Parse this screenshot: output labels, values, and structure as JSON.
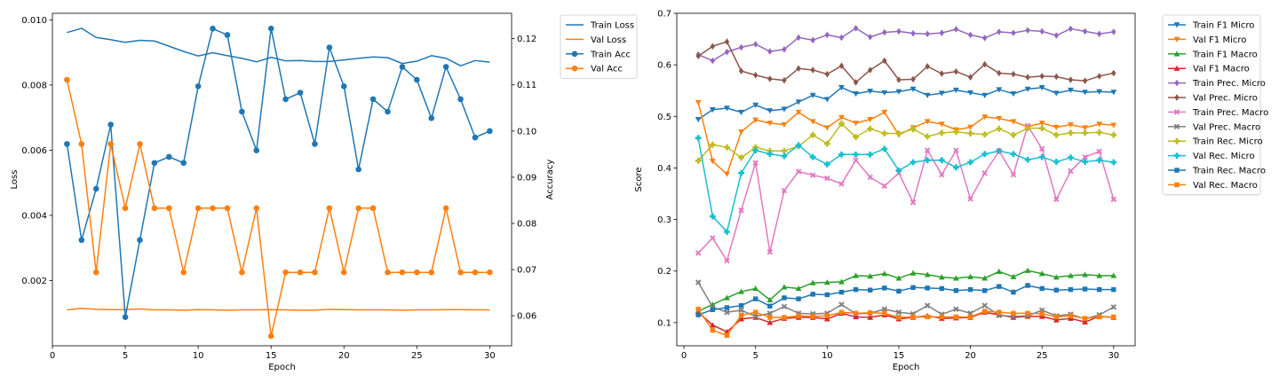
{
  "chart_data": [
    {
      "type": "line",
      "xlabel": "Epoch",
      "ylabel": "Loss",
      "y2label": "Accuracy",
      "xlim": [
        0,
        31.5
      ],
      "ylim": [
        0.0,
        0.0102
      ],
      "y2lim": [
        0.0535,
        0.1255
      ],
      "xticks": [
        "0",
        "5",
        "10",
        "15",
        "20",
        "25",
        "30"
      ],
      "xtick_values": [
        0,
        5,
        10,
        15,
        20,
        25,
        30
      ],
      "yticks": [
        "0.002",
        "0.004",
        "0.006",
        "0.008",
        "0.010"
      ],
      "ytick_values": [
        0.002,
        0.004,
        0.006,
        0.008,
        0.01
      ],
      "y2ticks": [
        "0.06",
        "0.07",
        "0.08",
        "0.09",
        "0.10",
        "0.11",
        "0.12"
      ],
      "y2tick_values": [
        0.06,
        0.07,
        0.08,
        0.09,
        0.1,
        0.11,
        0.12
      ],
      "grid": false,
      "legend_position": "outside-right-top",
      "x": [
        1,
        2,
        3,
        4,
        5,
        6,
        7,
        8,
        9,
        10,
        11,
        12,
        13,
        14,
        15,
        16,
        17,
        18,
        19,
        20,
        21,
        22,
        23,
        24,
        25,
        26,
        27,
        28,
        29,
        30
      ],
      "series": [
        {
          "name": "Train Loss",
          "axis": "left",
          "color": "#1f77b4",
          "marker": "none",
          "values": [
            0.00961,
            0.00974,
            0.00946,
            0.00939,
            0.00931,
            0.00937,
            0.00935,
            0.00919,
            0.00903,
            0.00889,
            0.00899,
            0.0089,
            0.00882,
            0.00871,
            0.00885,
            0.00874,
            0.00875,
            0.00872,
            0.00872,
            0.00877,
            0.00882,
            0.00886,
            0.00884,
            0.00866,
            0.00873,
            0.0089,
            0.00882,
            0.00859,
            0.00875,
            0.0087
          ]
        },
        {
          "name": "Val Loss",
          "axis": "left",
          "color": "#ff7f0e",
          "marker": "none",
          "values": [
            0.0011,
            0.00115,
            0.00112,
            0.00111,
            0.00111,
            0.00113,
            0.0011,
            0.0011,
            0.00109,
            0.00111,
            0.0011,
            0.00109,
            0.0011,
            0.0011,
            0.00111,
            0.0011,
            0.00109,
            0.00109,
            0.00112,
            0.00111,
            0.0011,
            0.0011,
            0.0011,
            0.00109,
            0.0011,
            0.0011,
            0.00111,
            0.00111,
            0.0011,
            0.0011
          ]
        },
        {
          "name": "Train Acc",
          "axis": "right",
          "color": "#1f77b4",
          "marker": "circle",
          "values": [
            0.0972,
            0.0764,
            0.0875,
            0.1014,
            0.0597,
            0.0764,
            0.0931,
            0.0944,
            0.0931,
            0.1097,
            0.1222,
            0.1208,
            0.1042,
            0.0958,
            0.1222,
            0.1069,
            0.1083,
            0.0972,
            0.1181,
            0.1097,
            0.0917,
            0.1069,
            0.1042,
            0.1139,
            0.1111,
            0.1028,
            0.1139,
            0.1069,
            0.0986,
            0.1
          ]
        },
        {
          "name": "Val Acc",
          "axis": "right",
          "color": "#ff7f0e",
          "marker": "circle",
          "values": [
            0.1111,
            0.0972,
            0.0694,
            0.0972,
            0.0833,
            0.0972,
            0.0833,
            0.0833,
            0.0694,
            0.0833,
            0.0833,
            0.0833,
            0.0694,
            0.0833,
            0.0556,
            0.0694,
            0.0694,
            0.0694,
            0.0833,
            0.0694,
            0.0833,
            0.0833,
            0.0694,
            0.0694,
            0.0694,
            0.0694,
            0.0833,
            0.0694,
            0.0694,
            0.0694
          ]
        }
      ]
    },
    {
      "type": "line",
      "xlabel": "Epoch",
      "ylabel": "Score",
      "xlim": [
        -0.5,
        31.5
      ],
      "ylim": [
        0.055,
        0.7
      ],
      "xticks": [
        "0",
        "5",
        "10",
        "15",
        "20",
        "25",
        "30"
      ],
      "xtick_values": [
        0,
        5,
        10,
        15,
        20,
        25,
        30
      ],
      "yticks": [
        "0.1",
        "0.2",
        "0.3",
        "0.4",
        "0.5",
        "0.6",
        "0.7"
      ],
      "ytick_values": [
        0.1,
        0.2,
        0.3,
        0.4,
        0.5,
        0.6,
        0.7
      ],
      "grid": false,
      "legend_position": "outside-right-top",
      "x": [
        1,
        2,
        3,
        4,
        5,
        6,
        7,
        8,
        9,
        10,
        11,
        12,
        13,
        14,
        15,
        16,
        17,
        18,
        19,
        20,
        21,
        22,
        23,
        24,
        25,
        26,
        27,
        28,
        29,
        30
      ],
      "series": [
        {
          "name": "Train F1 Micro",
          "color": "#1f77b4",
          "marker": "triangle-down",
          "values": [
            0.494,
            0.513,
            0.516,
            0.508,
            0.522,
            0.511,
            0.514,
            0.528,
            0.541,
            0.533,
            0.556,
            0.544,
            0.549,
            0.546,
            0.548,
            0.553,
            0.541,
            0.545,
            0.551,
            0.546,
            0.541,
            0.552,
            0.544,
            0.553,
            0.556,
            0.545,
            0.551,
            0.547,
            0.548,
            0.547
          ]
        },
        {
          "name": "Val F1 Micro",
          "color": "#ff7f0e",
          "marker": "triangle-down",
          "values": [
            0.527,
            0.413,
            0.388,
            0.47,
            0.493,
            0.487,
            0.484,
            0.508,
            0.49,
            0.478,
            0.498,
            0.487,
            0.494,
            0.508,
            0.464,
            0.478,
            0.49,
            0.485,
            0.474,
            0.479,
            0.499,
            0.496,
            0.49,
            0.48,
            0.487,
            0.479,
            0.484,
            0.478,
            0.485,
            0.483
          ]
        },
        {
          "name": "Train F1 Macro",
          "color": "#2ca02c",
          "marker": "triangle-up",
          "values": [
            0.122,
            0.135,
            0.148,
            0.16,
            0.166,
            0.144,
            0.169,
            0.166,
            0.177,
            0.178,
            0.179,
            0.191,
            0.19,
            0.195,
            0.186,
            0.196,
            0.193,
            0.188,
            0.186,
            0.189,
            0.186,
            0.199,
            0.189,
            0.201,
            0.195,
            0.188,
            0.191,
            0.193,
            0.191,
            0.191
          ]
        },
        {
          "name": "Val F1 Macro",
          "color": "#d62728",
          "marker": "triangle-up",
          "values": [
            0.12,
            0.095,
            0.082,
            0.107,
            0.11,
            0.1,
            0.108,
            0.11,
            0.11,
            0.107,
            0.118,
            0.111,
            0.11,
            0.115,
            0.107,
            0.11,
            0.113,
            0.108,
            0.109,
            0.11,
            0.12,
            0.115,
            0.11,
            0.112,
            0.112,
            0.105,
            0.108,
            0.101,
            0.112,
            0.11
          ]
        },
        {
          "name": "Train Prec. Micro",
          "color": "#9467bd",
          "marker": "diamond",
          "values": [
            0.62,
            0.608,
            0.625,
            0.634,
            0.64,
            0.626,
            0.63,
            0.653,
            0.648,
            0.658,
            0.653,
            0.671,
            0.654,
            0.663,
            0.665,
            0.661,
            0.66,
            0.662,
            0.669,
            0.658,
            0.652,
            0.664,
            0.662,
            0.667,
            0.665,
            0.657,
            0.67,
            0.665,
            0.66,
            0.664
          ]
        },
        {
          "name": "Val Prec. Micro",
          "color": "#8c564b",
          "marker": "diamond",
          "values": [
            0.617,
            0.636,
            0.645,
            0.588,
            0.58,
            0.573,
            0.57,
            0.593,
            0.59,
            0.582,
            0.598,
            0.566,
            0.59,
            0.608,
            0.571,
            0.572,
            0.597,
            0.583,
            0.587,
            0.576,
            0.601,
            0.584,
            0.582,
            0.576,
            0.578,
            0.577,
            0.571,
            0.569,
            0.578,
            0.584
          ]
        },
        {
          "name": "Train Prec. Macro",
          "color": "#e377c2",
          "marker": "x",
          "values": [
            0.235,
            0.264,
            0.22,
            0.318,
            0.41,
            0.237,
            0.356,
            0.393,
            0.386,
            0.38,
            0.369,
            0.415,
            0.382,
            0.365,
            0.39,
            0.333,
            0.434,
            0.387,
            0.434,
            0.34,
            0.39,
            0.433,
            0.387,
            0.482,
            0.437,
            0.339,
            0.394,
            0.421,
            0.432,
            0.339
          ]
        },
        {
          "name": "Val Prec. Macro",
          "color": "#7f7f7f",
          "marker": "x",
          "values": [
            0.178,
            0.13,
            0.12,
            0.124,
            0.112,
            0.118,
            0.131,
            0.118,
            0.117,
            0.118,
            0.135,
            0.117,
            0.118,
            0.126,
            0.12,
            0.117,
            0.133,
            0.116,
            0.126,
            0.118,
            0.133,
            0.114,
            0.112,
            0.113,
            0.124,
            0.113,
            0.116,
            0.107,
            0.115,
            0.13
          ]
        },
        {
          "name": "Train Rec. Micro",
          "color": "#bcbd22",
          "marker": "plus",
          "values": [
            0.414,
            0.445,
            0.44,
            0.42,
            0.44,
            0.433,
            0.433,
            0.442,
            0.464,
            0.447,
            0.486,
            0.46,
            0.476,
            0.467,
            0.467,
            0.475,
            0.461,
            0.468,
            0.47,
            0.467,
            0.465,
            0.476,
            0.464,
            0.477,
            0.477,
            0.464,
            0.468,
            0.468,
            0.469,
            0.464
          ]
        },
        {
          "name": "Val Rec. Micro",
          "color": "#17becf",
          "marker": "plus",
          "values": [
            0.458,
            0.306,
            0.276,
            0.39,
            0.434,
            0.427,
            0.423,
            0.444,
            0.421,
            0.407,
            0.426,
            0.426,
            0.426,
            0.437,
            0.395,
            0.411,
            0.415,
            0.415,
            0.401,
            0.411,
            0.427,
            0.433,
            0.427,
            0.416,
            0.421,
            0.412,
            0.42,
            0.412,
            0.415,
            0.411
          ]
        },
        {
          "name": "Train Rec. Macro",
          "color": "#1f77b4",
          "marker": "square",
          "values": [
            0.115,
            0.125,
            0.129,
            0.133,
            0.146,
            0.132,
            0.148,
            0.146,
            0.155,
            0.154,
            0.159,
            0.164,
            0.163,
            0.167,
            0.161,
            0.168,
            0.167,
            0.166,
            0.162,
            0.164,
            0.162,
            0.17,
            0.159,
            0.172,
            0.166,
            0.163,
            0.164,
            0.165,
            0.164,
            0.164
          ]
        },
        {
          "name": "Val Rec. Macro",
          "color": "#ff7f0e",
          "marker": "square",
          "values": [
            0.126,
            0.085,
            0.075,
            0.114,
            0.12,
            0.11,
            0.11,
            0.113,
            0.112,
            0.113,
            0.12,
            0.118,
            0.119,
            0.118,
            0.11,
            0.111,
            0.111,
            0.111,
            0.111,
            0.111,
            0.122,
            0.12,
            0.118,
            0.118,
            0.117,
            0.111,
            0.113,
            0.108,
            0.111,
            0.111
          ]
        }
      ]
    }
  ]
}
